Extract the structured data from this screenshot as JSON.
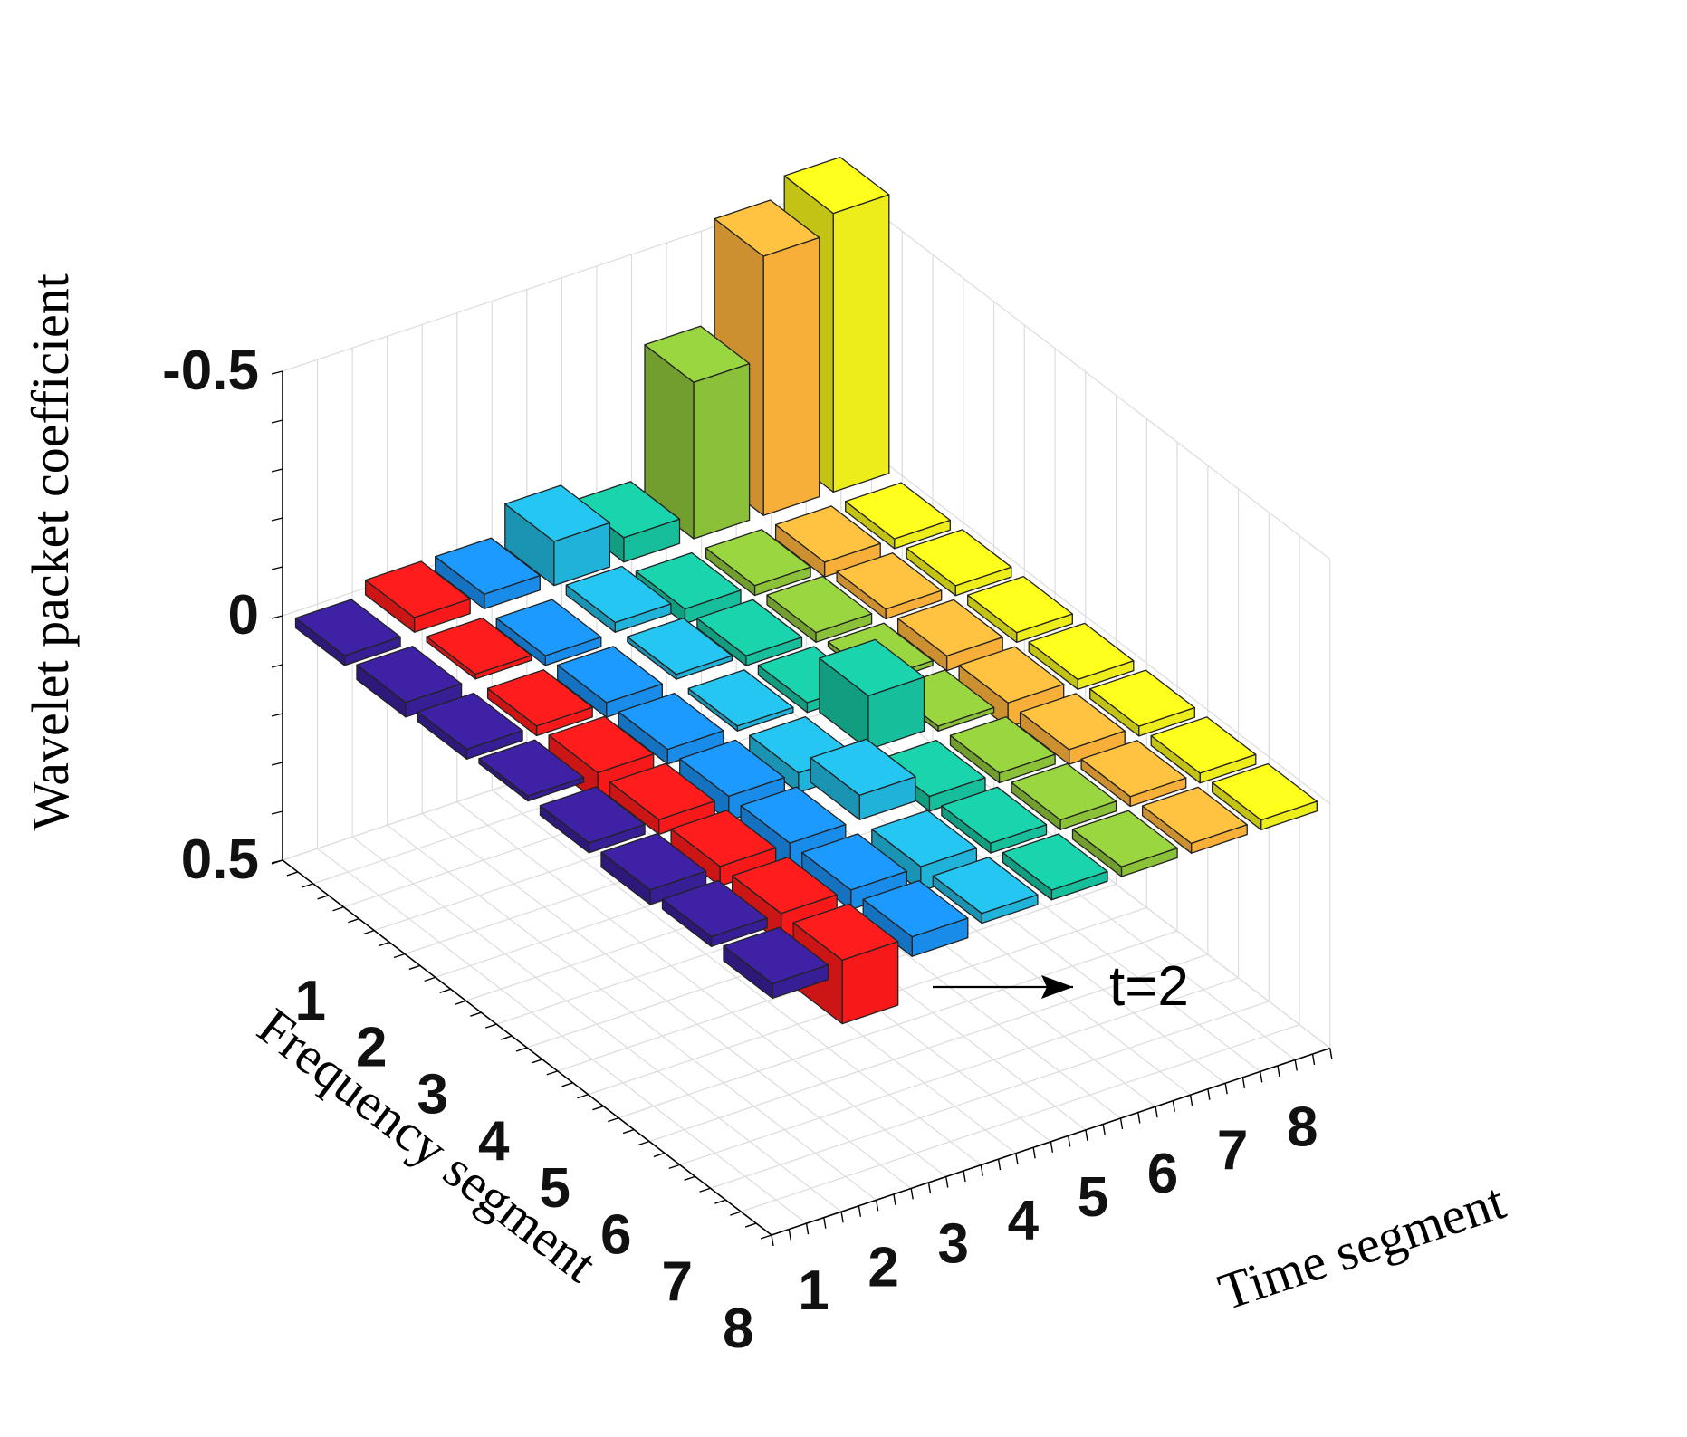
{
  "chart_data": {
    "type": "bar3d",
    "zlabel": "Wavelet packet coefficient",
    "xlabel": "Time segment",
    "ylabel": "Frequency segment",
    "z_reversed": true,
    "zlim": [
      -0.5,
      0.5
    ],
    "z_ticks": [
      {
        "value": -0.5,
        "label": "-0.5"
      },
      {
        "value": 0,
        "label": "0"
      },
      {
        "value": 0.5,
        "label": "0.5"
      }
    ],
    "time_ticks": [
      "1",
      "2",
      "3",
      "4",
      "5",
      "6",
      "7",
      "8"
    ],
    "frequency_ticks": [
      "1",
      "2",
      "3",
      "4",
      "5",
      "6",
      "7",
      "8"
    ],
    "grid": true,
    "annotation": {
      "text": "t=2",
      "points_to": {
        "time": 2,
        "frequency": 8
      }
    },
    "series": [
      {
        "time": 1,
        "color": "#3a1f9a",
        "values": [
          0.02,
          0.03,
          0.02,
          0.01,
          0.02,
          0.03,
          0.02,
          0.03
        ]
      },
      {
        "time": 2,
        "color": "#ff1a1a",
        "values": [
          -0.03,
          -0.01,
          0.02,
          0.06,
          0.03,
          0.04,
          0.06,
          0.13
        ]
      },
      {
        "time": 3,
        "color": "#1a8ff0",
        "values": [
          -0.03,
          0.02,
          0.03,
          0.03,
          0.05,
          0.06,
          0.04,
          0.04
        ]
      },
      {
        "time": 4,
        "color": "#22b8e0",
        "values": [
          -0.09,
          -0.02,
          -0.01,
          0.01,
          0.04,
          -0.05,
          0.05,
          0.02
        ]
      },
      {
        "time": 5,
        "color": "#17c4a0",
        "values": [
          -0.05,
          0.03,
          0.02,
          0.02,
          -0.11,
          0.03,
          0.02,
          0.02
        ]
      },
      {
        "time": 6,
        "color": "#8fc63b",
        "values": [
          -0.32,
          0.02,
          0.02,
          0.01,
          0.01,
          0.02,
          0.02,
          0.02
        ]
      },
      {
        "time": 7,
        "color": "#ffb43c",
        "values": [
          -0.53,
          0.03,
          0.02,
          0.03,
          0.05,
          0.03,
          0.02,
          0.02
        ]
      },
      {
        "time": 8,
        "color": "#f4f41c",
        "values": [
          -0.57,
          0.02,
          0.02,
          0.02,
          0.02,
          0.02,
          0.02,
          0.02
        ]
      }
    ]
  }
}
